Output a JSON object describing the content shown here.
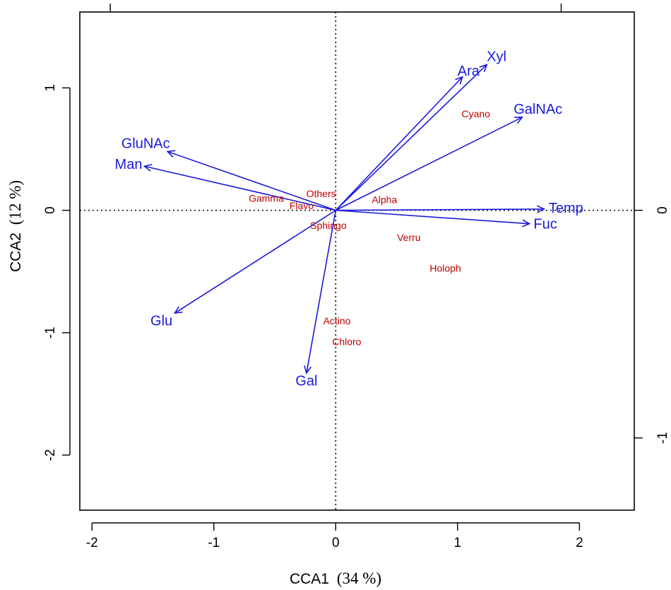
{
  "colors": {
    "env": "#1a1adc",
    "species": "#c00000",
    "axis": "#000000"
  },
  "chart_data": {
    "type": "scatter",
    "subtype": "cca-biplot",
    "xlabel": "CCA1",
    "xlabel_pct": "(34 %)",
    "ylabel": "CCA2",
    "ylabel_pct": "(12 %)",
    "xlim": [
      -2.1,
      2.45
    ],
    "ylim": [
      -2.45,
      1.62
    ],
    "x_ticks": [
      -2,
      -1,
      0,
      1,
      2
    ],
    "x_tick_labels": [
      "-2",
      "-1",
      "0",
      "1",
      "2"
    ],
    "y_ticks": [
      1,
      0,
      -1,
      -2
    ],
    "y_tick_labels": [
      "1",
      "0",
      "-1",
      "-2"
    ],
    "right_axis_ticks": [
      0,
      -1
    ],
    "right_axis_tick_labels": [
      "0",
      "-1"
    ],
    "top_axis_ticks": [
      -1.85,
      1.85
    ],
    "origin_lines": true,
    "env_vectors": [
      {
        "name": "Xyl",
        "x": 1.24,
        "y": 1.19
      },
      {
        "name": "Ara",
        "x": 1.04,
        "y": 1.09
      },
      {
        "name": "GalNAc",
        "x": 1.53,
        "y": 0.76
      },
      {
        "name": "GluNAc",
        "x": -1.38,
        "y": 0.48
      },
      {
        "name": "Man",
        "x": -1.57,
        "y": 0.36
      },
      {
        "name": "Temp",
        "x": 1.71,
        "y": 0.01
      },
      {
        "name": "Fuc",
        "x": 1.59,
        "y": -0.11
      },
      {
        "name": "Glu",
        "x": -1.32,
        "y": -0.84
      },
      {
        "name": "Gal",
        "x": -0.24,
        "y": -1.33
      }
    ],
    "env_label_positions": [
      {
        "name": "Xyl",
        "x": 1.32,
        "y": 1.25
      },
      {
        "name": "Ara",
        "x": 1.09,
        "y": 1.13
      },
      {
        "name": "GalNAc",
        "x": 1.66,
        "y": 0.82
      },
      {
        "name": "GluNAc",
        "x": -1.56,
        "y": 0.54
      },
      {
        "name": "Man",
        "x": -1.7,
        "y": 0.37
      },
      {
        "name": "Temp",
        "x": 1.89,
        "y": 0.01
      },
      {
        "name": "Fuc",
        "x": 1.72,
        "y": -0.12
      },
      {
        "name": "Glu",
        "x": -1.43,
        "y": -0.91
      },
      {
        "name": "Gal",
        "x": -0.24,
        "y": -1.4
      }
    ],
    "species": [
      {
        "name": "Cyano",
        "x": 1.15,
        "y": 0.78
      },
      {
        "name": "Others",
        "x": -0.12,
        "y": 0.13
      },
      {
        "name": "Gamma",
        "x": -0.57,
        "y": 0.09
      },
      {
        "name": "Flavo",
        "x": -0.28,
        "y": 0.03
      },
      {
        "name": "Alpha",
        "x": 0.4,
        "y": 0.08
      },
      {
        "name": "Sphingo",
        "x": -0.06,
        "y": -0.13
      },
      {
        "name": "Verru",
        "x": 0.6,
        "y": -0.23
      },
      {
        "name": "Holoph",
        "x": 0.9,
        "y": -0.48
      },
      {
        "name": "Actino",
        "x": 0.01,
        "y": -0.91
      },
      {
        "name": "Chloro",
        "x": 0.09,
        "y": -1.08
      }
    ]
  }
}
